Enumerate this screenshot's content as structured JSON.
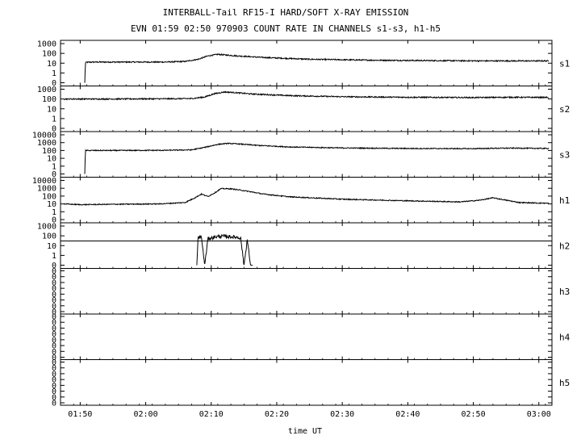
{
  "chart_data": {
    "type": "line",
    "title": "INTERBALL-Tail RF15-I HARD/SOFT X-RAY EMISSION",
    "subtitle": "EVN 01:59 02:50 970903  COUNT RATE IN CHANNELS s1-s3, h1-h5",
    "xlabel": "time UT",
    "x_ticks": [
      "01:50",
      "02:00",
      "02:10",
      "02:20",
      "02:30",
      "02:40",
      "02:50",
      "03:00"
    ],
    "x_tick_minutes": [
      110,
      120,
      130,
      140,
      150,
      160,
      170,
      180
    ],
    "xlim_minutes": [
      107,
      182
    ],
    "y_scale": "log",
    "panels": [
      {
        "name": "s1",
        "ylim": [
          0.1,
          1000
        ],
        "y_ticks": [
          "1000",
          "100",
          "10",
          "1",
          "0"
        ],
        "series": {
          "x": [
            110.7,
            110.8,
            112,
            117,
            123,
            126,
            128,
            129.5,
            131,
            132,
            134,
            138,
            145,
            155,
            165,
            172,
            176,
            181.5
          ],
          "y": [
            0.1,
            12,
            13,
            13,
            13,
            15,
            25,
            55,
            80,
            70,
            55,
            38,
            25,
            20,
            18,
            17,
            17,
            17
          ]
        }
      },
      {
        "name": "s2",
        "ylim": [
          0.1,
          1000
        ],
        "y_ticks": [
          "1000",
          "100",
          "10",
          "1",
          "0"
        ],
        "series": {
          "x": [
            107.5,
            115,
            123,
            127,
            129,
            130.5,
            132,
            133.5,
            136,
            142,
            150,
            160,
            170,
            176,
            181.5
          ],
          "y": [
            100,
            100,
            105,
            110,
            160,
            350,
            520,
            460,
            330,
            220,
            170,
            150,
            140,
            150,
            145
          ]
        }
      },
      {
        "name": "s3",
        "ylim": [
          0.1,
          10000
        ],
        "y_ticks": [
          "10000",
          "1000",
          "100",
          "10",
          "1",
          "0"
        ],
        "series": {
          "x": [
            110.7,
            110.8,
            115,
            123,
            127,
            129,
            131,
            132.5,
            134,
            137,
            142,
            150,
            160,
            170,
            173,
            176,
            181.5
          ],
          "y": [
            0.1,
            100,
            100,
            105,
            120,
            250,
            600,
            800,
            700,
            450,
            280,
            210,
            180,
            170,
            190,
            200,
            180
          ]
        }
      },
      {
        "name": "h1",
        "ylim": [
          0.1,
          10000
        ],
        "y_ticks": [
          "10000",
          "1000",
          "100",
          "10",
          "1",
          "0"
        ],
        "series": {
          "x": [
            107.5,
            110,
            115,
            122,
            126,
            127.5,
            128.5,
            129.5,
            130.5,
            131.5,
            133,
            135,
            138,
            142,
            150,
            160,
            168,
            171,
            173,
            175,
            177,
            181.5
          ],
          "y": [
            10,
            8,
            9,
            10,
            15,
            60,
            180,
            90,
            250,
            900,
            850,
            500,
            180,
            80,
            40,
            25,
            18,
            30,
            60,
            30,
            15,
            12
          ]
        }
      },
      {
        "name": "h2",
        "ylim": [
          0.1,
          1000
        ],
        "y_ticks": [
          "1000",
          "100",
          "10",
          "1",
          "0"
        ],
        "series": {
          "x": [
            127.8,
            128,
            128.5,
            129,
            129.5,
            130,
            130.5,
            131,
            131.5,
            132,
            132.5,
            133,
            133.5,
            134,
            134.5,
            135,
            135.5,
            136,
            136.3
          ],
          "y": [
            0.1,
            70,
            80,
            0.1,
            50,
            60,
            75,
            85,
            90,
            90,
            85,
            80,
            75,
            70,
            60,
            0.1,
            40,
            0.1,
            0.1
          ]
        }
      },
      {
        "name": "h3",
        "ylim": [
          0,
          1
        ],
        "y_ticks": [
          "0",
          "0",
          "0",
          "0",
          "0",
          "0",
          "0",
          "0"
        ],
        "series": {
          "x": [],
          "y": []
        }
      },
      {
        "name": "h4",
        "ylim": [
          0,
          1
        ],
        "y_ticks": [
          "0",
          "0",
          "0",
          "0",
          "0",
          "0",
          "0",
          "0"
        ],
        "series": {
          "x": [],
          "y": []
        }
      },
      {
        "name": "h5",
        "ylim": [
          0,
          1
        ],
        "y_ticks": [
          "0",
          "0",
          "0",
          "0",
          "0",
          "0",
          "0",
          "0"
        ],
        "series": {
          "x": [],
          "y": []
        }
      }
    ],
    "h2_reference_level": 30,
    "grid": false,
    "line_color": "#000000"
  }
}
